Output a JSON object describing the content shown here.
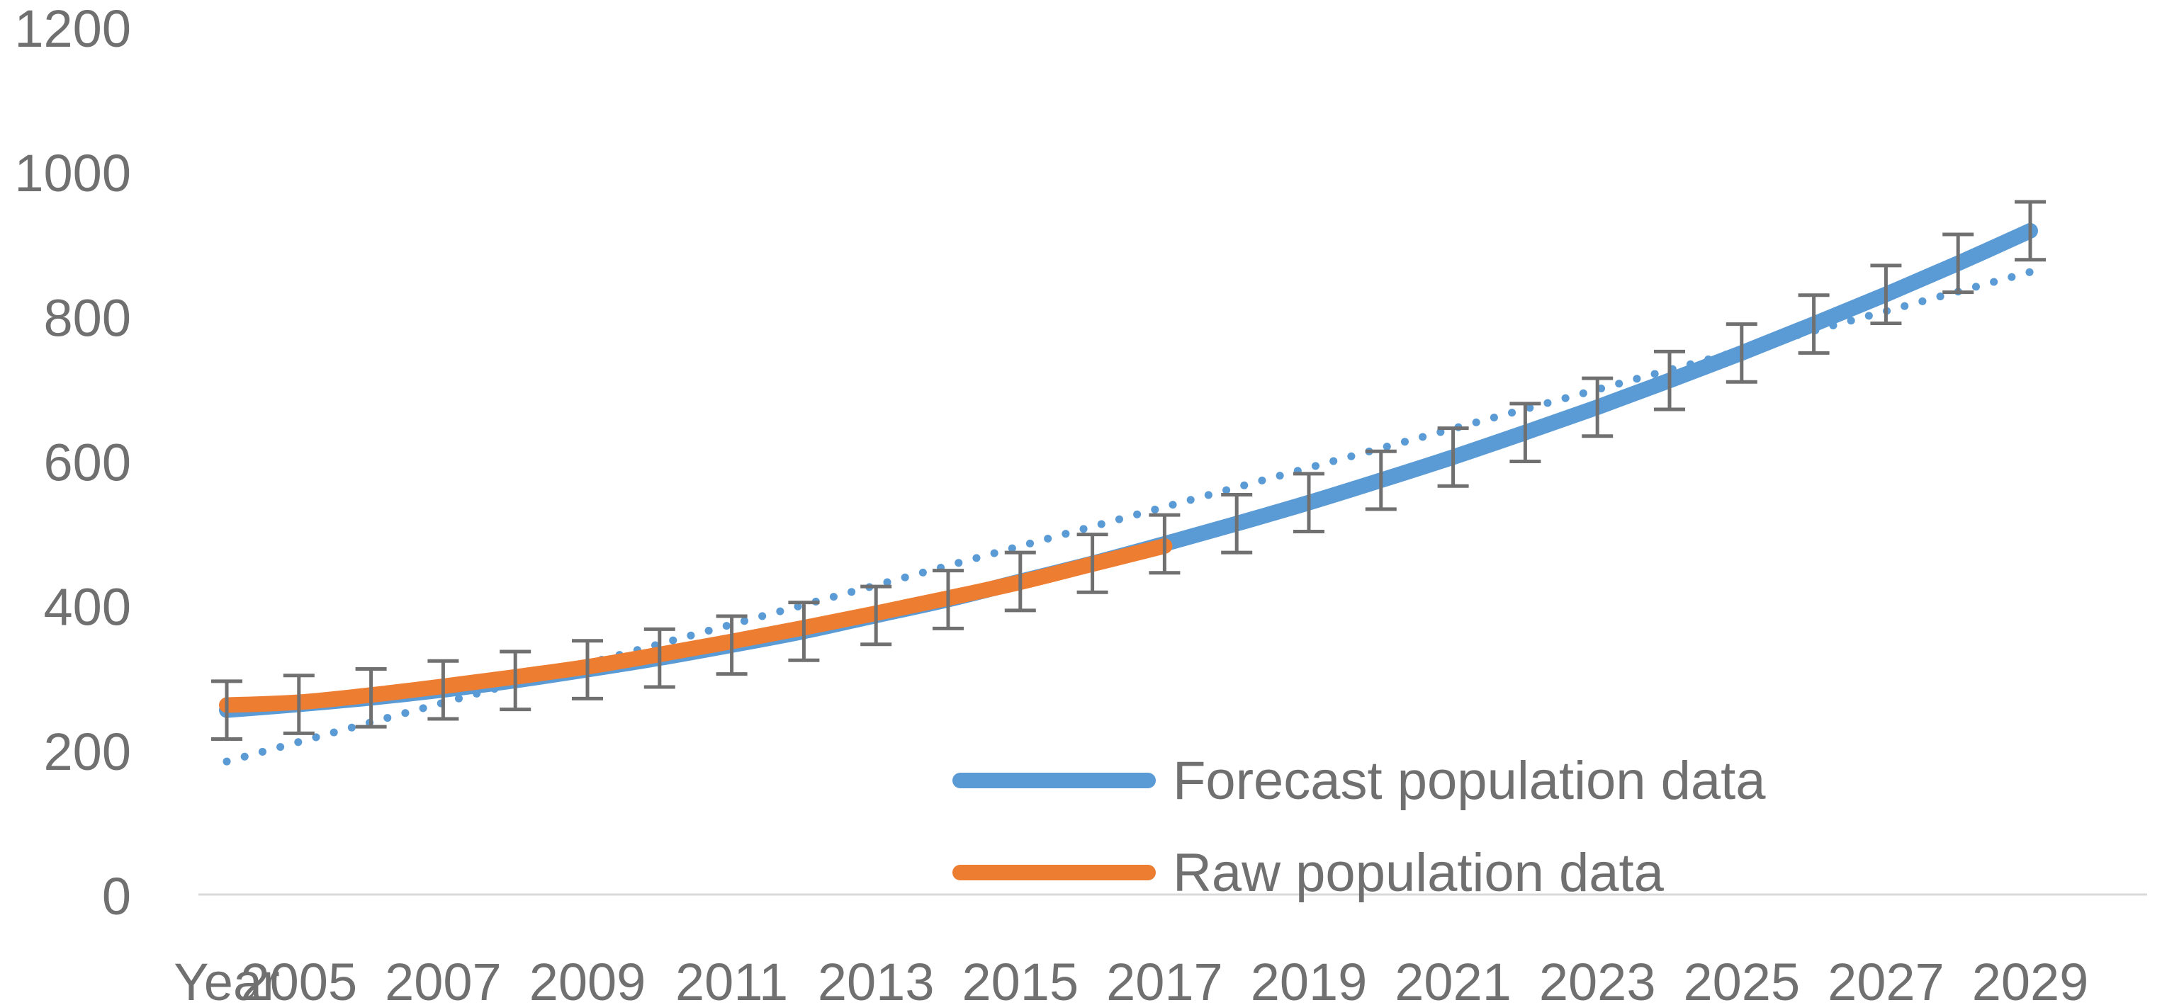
{
  "chart_data": {
    "type": "line",
    "title": "",
    "xlabel": "",
    "ylabel": "",
    "ylim": [
      0,
      1200
    ],
    "yticks": [
      "0",
      "200",
      "400",
      "600",
      "800",
      "1000",
      "1200"
    ],
    "x_tick_labels": [
      "Year",
      "2005",
      "2007",
      "2009",
      "2011",
      "2013",
      "2015",
      "2017",
      "2019",
      "2021",
      "2023",
      "2025",
      "2027",
      "2029"
    ],
    "categories": [
      "Year",
      "2005",
      "2006",
      "2007",
      "2008",
      "2009",
      "2010",
      "2011",
      "2012",
      "2013",
      "2014",
      "2015",
      "2016",
      "2017",
      "2018",
      "2019",
      "2020",
      "2021",
      "2022",
      "2023",
      "2024",
      "2025",
      "2026",
      "2027",
      "2028",
      "2029"
    ],
    "grid": false,
    "legend_position": "bottom-right",
    "series": [
      {
        "name": "Forecast population data",
        "color": "#5B9BD5",
        "values": [
          255,
          263,
          272,
          283,
          296,
          311,
          327,
          345,
          364,
          386,
          408,
          433,
          458,
          485,
          513,
          542,
          573,
          605,
          639,
          674,
          711,
          749,
          789,
          830,
          873,
          918
        ]
      },
      {
        "name": "Raw population data",
        "color": "#ED7D31",
        "values": [
          262,
          266,
          276,
          288,
          301,
          315,
          332,
          350,
          369,
          389,
          410,
          432,
          457,
          482,
          null,
          null,
          null,
          null,
          null,
          null,
          null,
          null,
          null,
          null,
          null,
          null
        ]
      }
    ],
    "error_bars": {
      "color": "#707070",
      "plus_minus": 40,
      "applies_to": "Forecast population data"
    },
    "trendline": {
      "type": "linear",
      "color": "#5B9BD5",
      "style": "dotted",
      "start_value": 184,
      "end_value": 861
    }
  }
}
